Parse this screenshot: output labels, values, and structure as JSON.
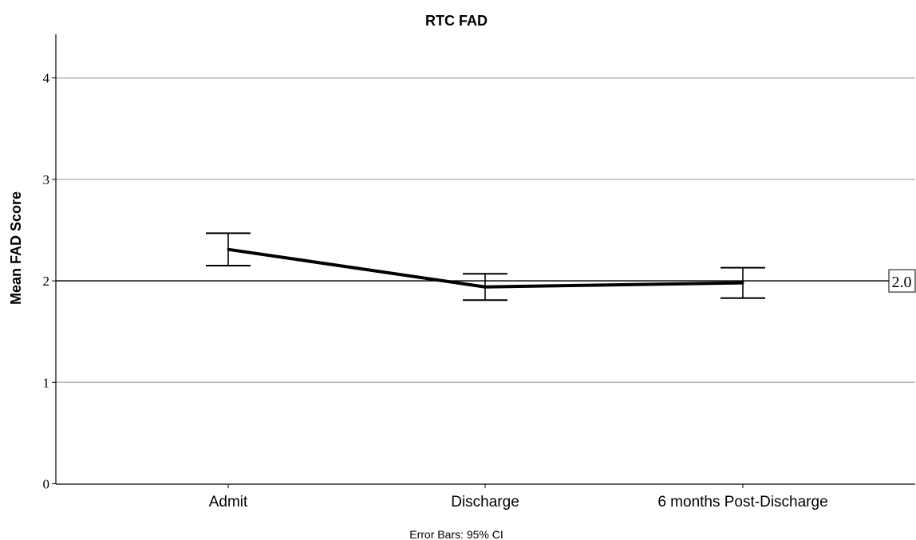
{
  "chart_data": {
    "type": "line",
    "title": "RTC FAD",
    "xlabel": "",
    "ylabel": "Mean FAD Score",
    "categories": [
      "Admit",
      "Discharge",
      "6 months Post-Discharge"
    ],
    "series": [
      {
        "values": [
          2.31,
          1.94,
          1.98
        ],
        "ci_lower": [
          2.15,
          1.81,
          1.83
        ],
        "ci_upper": [
          2.47,
          2.07,
          2.13
        ]
      }
    ],
    "ylim": [
      0,
      4.4
    ],
    "yticks": [
      "0",
      "1",
      "2",
      "3",
      "4"
    ],
    "grid": true,
    "reference_line": {
      "value": 2.0,
      "label": "2.0"
    },
    "footnote": "Error Bars: 95% CI",
    "colors": {
      "line": "#000000",
      "grid": "#b4b4b4",
      "axis": "#000000"
    }
  }
}
